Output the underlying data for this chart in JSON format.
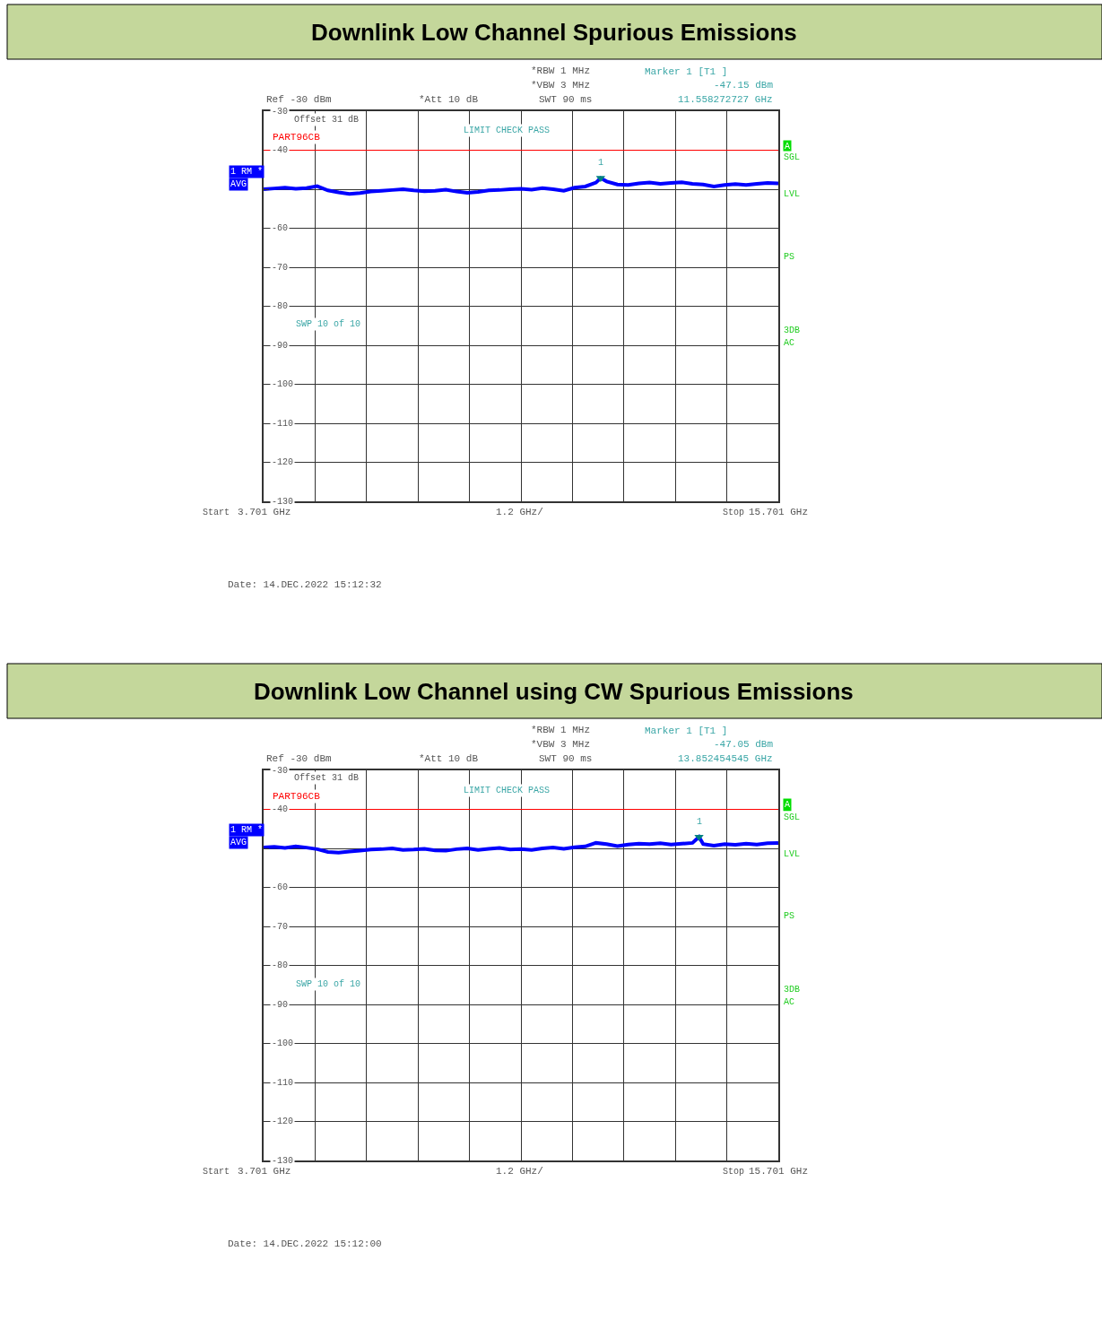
{
  "chart_data": [
    {
      "type": "line",
      "title": "Downlink Low Channel Spurious Emissions",
      "xlabel": "1.2 GHz/",
      "xlim": [
        3.701,
        15.701
      ],
      "xticks": [
        {
          "value": 3.701,
          "label": "3.701 GHz"
        },
        {
          "value": 4.901,
          "label": null
        },
        {
          "value": 6.101,
          "label": null
        },
        {
          "value": 7.301,
          "label": null
        },
        {
          "value": 8.501,
          "label": null
        },
        {
          "value": 9.701,
          "label": null
        },
        {
          "value": 10.901,
          "label": null
        },
        {
          "value": 12.101,
          "label": null
        },
        {
          "value": 13.301,
          "label": null
        },
        {
          "value": 14.501,
          "label": null
        },
        {
          "value": 15.701,
          "label": "15.701 GHz"
        }
      ],
      "ylim": [
        -130,
        -30
      ],
      "yticks": [
        -30,
        -40,
        {
          "value": -50,
          "label": null
        },
        -60,
        -70,
        -80,
        -90,
        -100,
        -110,
        -120,
        -130
      ],
      "grid": true,
      "legend": false,
      "ref_lines": [
        {
          "axis": "y",
          "value": -40,
          "label": "PART96CB",
          "color": "#ff0000"
        }
      ],
      "series": [
        {
          "type": "line",
          "color": "#0000ff",
          "x": [
            3.701,
            3.95,
            4.2,
            4.45,
            4.7,
            4.95,
            5.2,
            5.45,
            5.7,
            5.95,
            6.2,
            6.45,
            6.7,
            6.95,
            7.2,
            7.45,
            7.7,
            7.95,
            8.2,
            8.45,
            8.7,
            8.95,
            9.2,
            9.45,
            9.7,
            9.95,
            10.2,
            10.45,
            10.7,
            10.95,
            11.2,
            11.45,
            11.558,
            11.7,
            11.95,
            12.2,
            12.45,
            12.7,
            12.95,
            13.2,
            13.45,
            13.7,
            13.95,
            14.2,
            14.45,
            14.7,
            14.95,
            15.2,
            15.45,
            15.701
          ],
          "values": [
            -50.0,
            -49.8,
            -49.6,
            -49.9,
            -49.7,
            -49.2,
            -50.3,
            -50.8,
            -51.2,
            -51.0,
            -50.6,
            -50.4,
            -50.2,
            -50.0,
            -50.3,
            -50.5,
            -50.4,
            -50.1,
            -50.6,
            -50.9,
            -50.7,
            -50.3,
            -50.2,
            -50.0,
            -49.9,
            -50.1,
            -49.7,
            -50.0,
            -50.4,
            -49.6,
            -49.3,
            -48.3,
            -47.15,
            -48.0,
            -48.8,
            -48.9,
            -48.5,
            -48.3,
            -48.6,
            -48.4,
            -48.2,
            -48.6,
            -48.8,
            -49.3,
            -48.9,
            -48.7,
            -48.9,
            -48.6,
            -48.4,
            -48.5
          ]
        },
        {
          "type": "scatter",
          "marker": "triangle",
          "color": "#008080",
          "x": [
            11.558272727
          ],
          "values": [
            -47.15
          ]
        }
      ],
      "annotations": [
        "Ref -30 dBm",
        "*Att 10 dB",
        "*RBW 1 MHz",
        "*VBW 3 MHz",
        "SWT 90 ms",
        "Marker 1 [T1 ]",
        "-47.15 dBm",
        "11.558272727 GHz",
        "Offset 31 dB",
        "LIMIT CHECK PASS",
        "SWP 10 of 10",
        "1 RM *",
        "AVG",
        "A",
        "SGL",
        "LVL",
        "PS",
        "3DB",
        "AC",
        "Date: 14.DEC.2022 15:12:32",
        "Start",
        "Stop",
        "1"
      ]
    },
    {
      "type": "line",
      "title": "Downlink Low Channel using CW Spurious Emissions",
      "xlabel": "1.2 GHz/",
      "xlim": [
        3.701,
        15.701
      ],
      "xticks": [
        {
          "value": 3.701,
          "label": "3.701 GHz"
        },
        {
          "value": 4.901,
          "label": null
        },
        {
          "value": 6.101,
          "label": null
        },
        {
          "value": 7.301,
          "label": null
        },
        {
          "value": 8.501,
          "label": null
        },
        {
          "value": 9.701,
          "label": null
        },
        {
          "value": 10.901,
          "label": null
        },
        {
          "value": 12.101,
          "label": null
        },
        {
          "value": 13.301,
          "label": null
        },
        {
          "value": 14.501,
          "label": null
        },
        {
          "value": 15.701,
          "label": "15.701 GHz"
        }
      ],
      "ylim": [
        -130,
        -30
      ],
      "yticks": [
        -30,
        -40,
        {
          "value": -50,
          "label": null
        },
        -60,
        -70,
        -80,
        -90,
        -100,
        -110,
        -120,
        -130
      ],
      "grid": true,
      "legend": false,
      "ref_lines": [
        {
          "axis": "y",
          "value": -40,
          "label": "PART96CB",
          "color": "#ff0000"
        }
      ],
      "series": [
        {
          "type": "line",
          "color": "#0000ff",
          "x": [
            3.701,
            3.95,
            4.2,
            4.45,
            4.7,
            4.95,
            5.2,
            5.45,
            5.7,
            5.95,
            6.2,
            6.45,
            6.7,
            6.95,
            7.2,
            7.45,
            7.7,
            7.95,
            8.2,
            8.45,
            8.7,
            8.95,
            9.2,
            9.45,
            9.7,
            9.95,
            10.2,
            10.45,
            10.7,
            10.95,
            11.2,
            11.45,
            11.7,
            11.95,
            12.2,
            12.45,
            12.7,
            12.95,
            13.2,
            13.45,
            13.7,
            13.852454545,
            13.95,
            14.2,
            14.45,
            14.7,
            14.95,
            15.2,
            15.45,
            15.701
          ],
          "values": [
            -49.8,
            -49.6,
            -49.9,
            -49.5,
            -49.8,
            -50.2,
            -50.9,
            -51.1,
            -50.8,
            -50.6,
            -50.3,
            -50.2,
            -50.0,
            -50.4,
            -50.3,
            -50.1,
            -50.5,
            -50.6,
            -50.2,
            -50.0,
            -50.4,
            -50.1,
            -49.9,
            -50.3,
            -50.2,
            -50.4,
            -50.0,
            -49.8,
            -50.1,
            -49.7,
            -49.5,
            -48.6,
            -48.9,
            -49.4,
            -49.0,
            -48.8,
            -48.9,
            -48.7,
            -49.0,
            -48.8,
            -48.6,
            -47.05,
            -48.9,
            -49.3,
            -48.9,
            -49.1,
            -48.8,
            -49.0,
            -48.7,
            -48.6
          ]
        },
        {
          "type": "scatter",
          "marker": "triangle",
          "color": "#008080",
          "x": [
            13.852454545
          ],
          "values": [
            -47.05
          ]
        }
      ],
      "annotations": [
        "Ref -30 dBm",
        "*Att 10 dB",
        "*RBW 1 MHz",
        "*VBW 3 MHz",
        "SWT 90 ms",
        "Marker 1 [T1 ]",
        "-47.05 dBm",
        "13.852454545 GHz",
        "Offset 31 dB",
        "LIMIT CHECK PASS",
        "SWP 10 of 10",
        "1 RM *",
        "AVG",
        "A",
        "SGL",
        "LVL",
        "PS",
        "3DB",
        "AC",
        "Date: 14.DEC.2022 15:12:00",
        "Start",
        "Stop",
        "1"
      ]
    }
  ]
}
